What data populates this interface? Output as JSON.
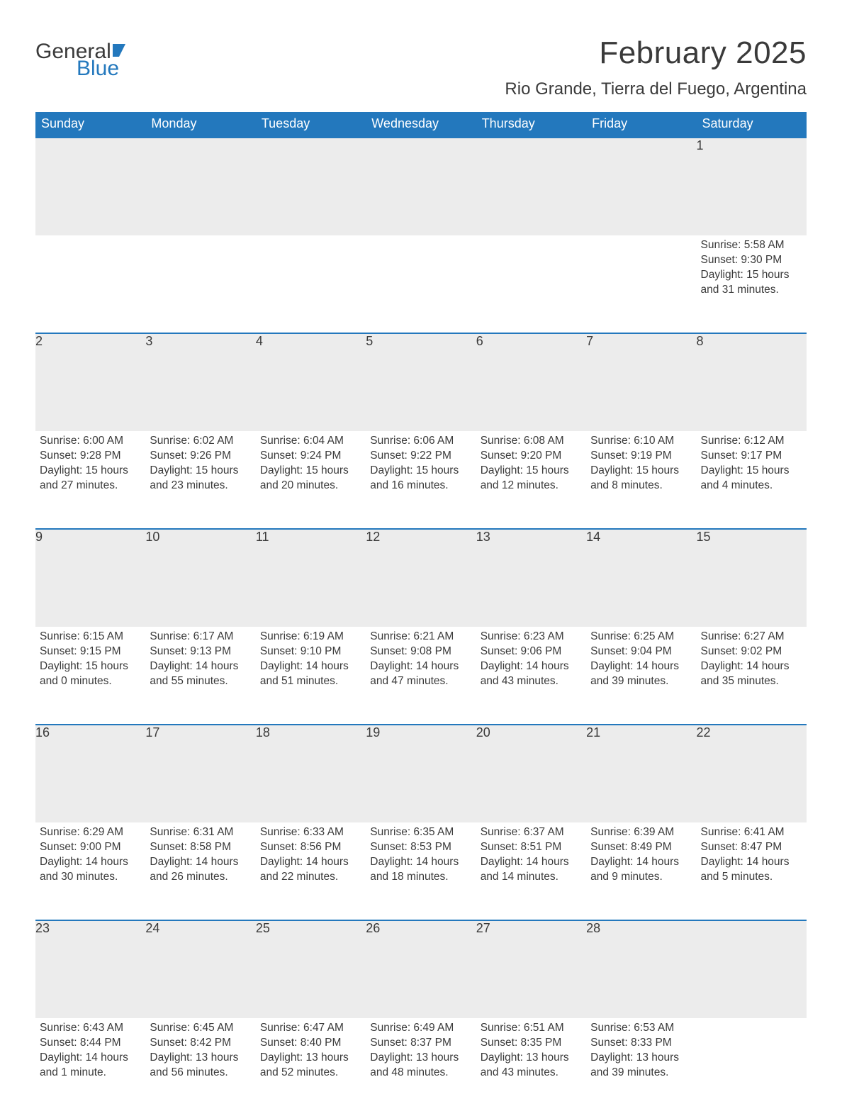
{
  "brand": {
    "word1": "General",
    "word2": "Blue"
  },
  "title": "February 2025",
  "location": "Rio Grande, Tierra del Fuego, Argentina",
  "colors": {
    "header_bg": "#2378bd",
    "header_fg": "#ffffff",
    "daynum_bg": "#ececec",
    "text": "#3a3a3a",
    "border": "#2378bd",
    "page_bg": "#ffffff"
  },
  "day_labels": [
    "Sunday",
    "Monday",
    "Tuesday",
    "Wednesday",
    "Thursday",
    "Friday",
    "Saturday"
  ],
  "weeks": [
    [
      null,
      null,
      null,
      null,
      null,
      null,
      {
        "n": "1",
        "sr": "Sunrise: 5:58 AM",
        "ss": "Sunset: 9:30 PM",
        "dl": "Daylight: 15 hours and 31 minutes."
      }
    ],
    [
      {
        "n": "2",
        "sr": "Sunrise: 6:00 AM",
        "ss": "Sunset: 9:28 PM",
        "dl": "Daylight: 15 hours and 27 minutes."
      },
      {
        "n": "3",
        "sr": "Sunrise: 6:02 AM",
        "ss": "Sunset: 9:26 PM",
        "dl": "Daylight: 15 hours and 23 minutes."
      },
      {
        "n": "4",
        "sr": "Sunrise: 6:04 AM",
        "ss": "Sunset: 9:24 PM",
        "dl": "Daylight: 15 hours and 20 minutes."
      },
      {
        "n": "5",
        "sr": "Sunrise: 6:06 AM",
        "ss": "Sunset: 9:22 PM",
        "dl": "Daylight: 15 hours and 16 minutes."
      },
      {
        "n": "6",
        "sr": "Sunrise: 6:08 AM",
        "ss": "Sunset: 9:20 PM",
        "dl": "Daylight: 15 hours and 12 minutes."
      },
      {
        "n": "7",
        "sr": "Sunrise: 6:10 AM",
        "ss": "Sunset: 9:19 PM",
        "dl": "Daylight: 15 hours and 8 minutes."
      },
      {
        "n": "8",
        "sr": "Sunrise: 6:12 AM",
        "ss": "Sunset: 9:17 PM",
        "dl": "Daylight: 15 hours and 4 minutes."
      }
    ],
    [
      {
        "n": "9",
        "sr": "Sunrise: 6:15 AM",
        "ss": "Sunset: 9:15 PM",
        "dl": "Daylight: 15 hours and 0 minutes."
      },
      {
        "n": "10",
        "sr": "Sunrise: 6:17 AM",
        "ss": "Sunset: 9:13 PM",
        "dl": "Daylight: 14 hours and 55 minutes."
      },
      {
        "n": "11",
        "sr": "Sunrise: 6:19 AM",
        "ss": "Sunset: 9:10 PM",
        "dl": "Daylight: 14 hours and 51 minutes."
      },
      {
        "n": "12",
        "sr": "Sunrise: 6:21 AM",
        "ss": "Sunset: 9:08 PM",
        "dl": "Daylight: 14 hours and 47 minutes."
      },
      {
        "n": "13",
        "sr": "Sunrise: 6:23 AM",
        "ss": "Sunset: 9:06 PM",
        "dl": "Daylight: 14 hours and 43 minutes."
      },
      {
        "n": "14",
        "sr": "Sunrise: 6:25 AM",
        "ss": "Sunset: 9:04 PM",
        "dl": "Daylight: 14 hours and 39 minutes."
      },
      {
        "n": "15",
        "sr": "Sunrise: 6:27 AM",
        "ss": "Sunset: 9:02 PM",
        "dl": "Daylight: 14 hours and 35 minutes."
      }
    ],
    [
      {
        "n": "16",
        "sr": "Sunrise: 6:29 AM",
        "ss": "Sunset: 9:00 PM",
        "dl": "Daylight: 14 hours and 30 minutes."
      },
      {
        "n": "17",
        "sr": "Sunrise: 6:31 AM",
        "ss": "Sunset: 8:58 PM",
        "dl": "Daylight: 14 hours and 26 minutes."
      },
      {
        "n": "18",
        "sr": "Sunrise: 6:33 AM",
        "ss": "Sunset: 8:56 PM",
        "dl": "Daylight: 14 hours and 22 minutes."
      },
      {
        "n": "19",
        "sr": "Sunrise: 6:35 AM",
        "ss": "Sunset: 8:53 PM",
        "dl": "Daylight: 14 hours and 18 minutes."
      },
      {
        "n": "20",
        "sr": "Sunrise: 6:37 AM",
        "ss": "Sunset: 8:51 PM",
        "dl": "Daylight: 14 hours and 14 minutes."
      },
      {
        "n": "21",
        "sr": "Sunrise: 6:39 AM",
        "ss": "Sunset: 8:49 PM",
        "dl": "Daylight: 14 hours and 9 minutes."
      },
      {
        "n": "22",
        "sr": "Sunrise: 6:41 AM",
        "ss": "Sunset: 8:47 PM",
        "dl": "Daylight: 14 hours and 5 minutes."
      }
    ],
    [
      {
        "n": "23",
        "sr": "Sunrise: 6:43 AM",
        "ss": "Sunset: 8:44 PM",
        "dl": "Daylight: 14 hours and 1 minute."
      },
      {
        "n": "24",
        "sr": "Sunrise: 6:45 AM",
        "ss": "Sunset: 8:42 PM",
        "dl": "Daylight: 13 hours and 56 minutes."
      },
      {
        "n": "25",
        "sr": "Sunrise: 6:47 AM",
        "ss": "Sunset: 8:40 PM",
        "dl": "Daylight: 13 hours and 52 minutes."
      },
      {
        "n": "26",
        "sr": "Sunrise: 6:49 AM",
        "ss": "Sunset: 8:37 PM",
        "dl": "Daylight: 13 hours and 48 minutes."
      },
      {
        "n": "27",
        "sr": "Sunrise: 6:51 AM",
        "ss": "Sunset: 8:35 PM",
        "dl": "Daylight: 13 hours and 43 minutes."
      },
      {
        "n": "28",
        "sr": "Sunrise: 6:53 AM",
        "ss": "Sunset: 8:33 PM",
        "dl": "Daylight: 13 hours and 39 minutes."
      },
      null
    ]
  ]
}
